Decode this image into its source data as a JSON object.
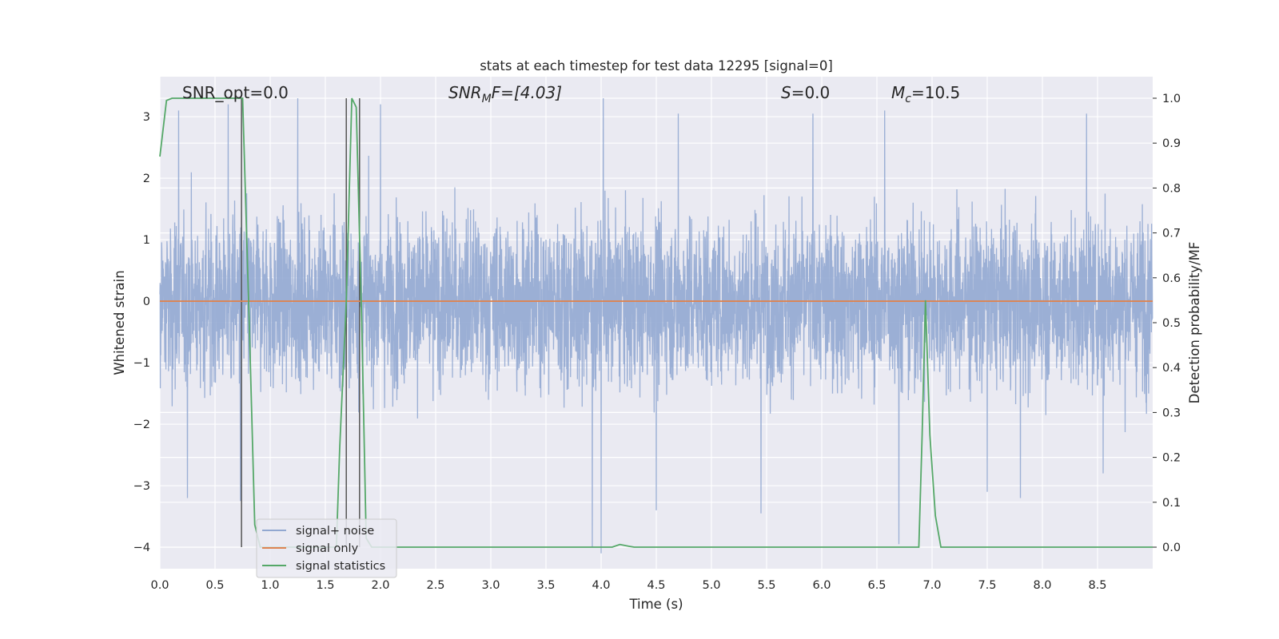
{
  "chart_data": {
    "type": "line",
    "title": "stats at each timestep for test data 12295 [signal=0]",
    "xlabel": "Time (s)",
    "ylabel": "Whitened strain",
    "ylabel_right": "Detection probability/MF",
    "xlim": [
      0.0,
      9.0
    ],
    "ylim": [
      -4.35,
      3.65
    ],
    "ylim_right": [
      -0.048,
      1.048
    ],
    "x_ticks": [
      "0.0",
      "0.5",
      "1.0",
      "1.5",
      "2.0",
      "2.5",
      "3.0",
      "3.5",
      "4.0",
      "4.5",
      "5.0",
      "5.5",
      "6.0",
      "6.5",
      "7.0",
      "7.5",
      "8.0",
      "8.5"
    ],
    "y_ticks": [
      "3",
      "2",
      "1",
      "0",
      "−1",
      "−2",
      "−3",
      "−4"
    ],
    "y_tick_values": [
      3,
      2,
      1,
      0,
      -1,
      -2,
      -3,
      -4
    ],
    "y_right_ticks": [
      "1.0",
      "0.9",
      "0.8",
      "0.7",
      "0.6",
      "0.5",
      "0.4",
      "0.3",
      "0.2",
      "0.1",
      "0.0"
    ],
    "y_right_tick_values": [
      1.0,
      0.9,
      0.8,
      0.7,
      0.6,
      0.5,
      0.4,
      0.3,
      0.2,
      0.1,
      0.0
    ],
    "grid": true,
    "legend_position": "bottom-left",
    "annotations": {
      "snr_opt": "SNR_opt=0.0",
      "snr_mf_prefix": "SNR",
      "snr_mf_sub": "M",
      "snr_mf_suffix": "F=[4.03]",
      "s_label": "S",
      "s_value": "=0.0",
      "mc_label": "M",
      "mc_sub": "c",
      "mc_value": "=10.5"
    },
    "series": [
      {
        "name": "signal+ noise",
        "color": "#92a8d1",
        "description_kind": "noise",
        "sample_rate_hz": 512,
        "typical_amplitude": 1.8,
        "peak_amplitude": 3.3,
        "peaks": [
          {
            "x": 0.17,
            "y": 3.1
          },
          {
            "x": 0.62,
            "y": 3.2
          },
          {
            "x": 1.25,
            "y": 3.3
          },
          {
            "x": 2.0,
            "y": 3.2
          },
          {
            "x": 4.02,
            "y": 3.3
          },
          {
            "x": 4.7,
            "y": 3.05
          },
          {
            "x": 5.92,
            "y": 3.05
          },
          {
            "x": 6.57,
            "y": 3.1
          },
          {
            "x": 8.4,
            "y": 3.05
          },
          {
            "x": 0.25,
            "y": -3.2
          },
          {
            "x": 0.73,
            "y": -3.25
          },
          {
            "x": 3.92,
            "y": -4.0
          },
          {
            "x": 4.0,
            "y": -4.1
          },
          {
            "x": 4.5,
            "y": -3.4
          },
          {
            "x": 5.45,
            "y": -3.45
          },
          {
            "x": 6.7,
            "y": -3.95
          },
          {
            "x": 7.5,
            "y": -3.1
          },
          {
            "x": 7.8,
            "y": -3.2
          },
          {
            "x": 8.55,
            "y": -2.8
          }
        ]
      },
      {
        "name": "signal only",
        "color": "#dd8452",
        "x": [
          0.0,
          9.0
        ],
        "y": [
          0.0,
          0.0
        ]
      },
      {
        "name": "signal statistics",
        "color": "#55a868",
        "axis": "right",
        "x": [
          0.0,
          0.06,
          0.11,
          0.17,
          0.22,
          0.28,
          0.33,
          0.39,
          0.44,
          0.5,
          0.55,
          0.61,
          0.66,
          0.72,
          0.75,
          0.81,
          0.86,
          0.91,
          1.0,
          1.1,
          1.2,
          1.3,
          1.4,
          1.5,
          1.6,
          1.63,
          1.69,
          1.74,
          1.78,
          1.83,
          1.87,
          1.92,
          2.0,
          2.5,
          3.0,
          3.5,
          4.0,
          4.1,
          4.17,
          4.25,
          4.3,
          5.0,
          6.0,
          6.5,
          6.8,
          6.88,
          6.91,
          6.94,
          6.98,
          7.03,
          7.08,
          7.5,
          8.0,
          8.5,
          9.0
        ],
        "y": [
          0.87,
          0.995,
          1.0,
          1.0,
          1.0,
          1.0,
          1.0,
          1.0,
          1.0,
          1.0,
          1.0,
          1.0,
          1.0,
          1.0,
          1.0,
          0.5,
          0.05,
          0.0,
          0.0,
          0.0,
          0.0,
          0.0,
          0.0,
          0.0,
          0.0,
          0.22,
          0.55,
          1.0,
          0.98,
          0.5,
          0.02,
          0.0,
          0.0,
          0.0,
          0.0,
          0.0,
          0.0,
          0.0,
          0.006,
          0.002,
          0.0,
          0.0,
          0.0,
          0.0,
          0.0,
          0.0,
          0.25,
          0.55,
          0.25,
          0.07,
          0.0,
          0.0,
          0.0,
          0.0,
          0.0
        ]
      }
    ],
    "vertical_markers": [
      {
        "x": 0.74,
        "y_from": -4.0,
        "y_to": 3.3,
        "color": "#555555"
      },
      {
        "x": 1.69,
        "y_from": -4.0,
        "y_to": 3.3,
        "color": "#555555"
      },
      {
        "x": 1.81,
        "y_from": -4.0,
        "y_to": 3.3,
        "color": "#555555"
      }
    ]
  }
}
